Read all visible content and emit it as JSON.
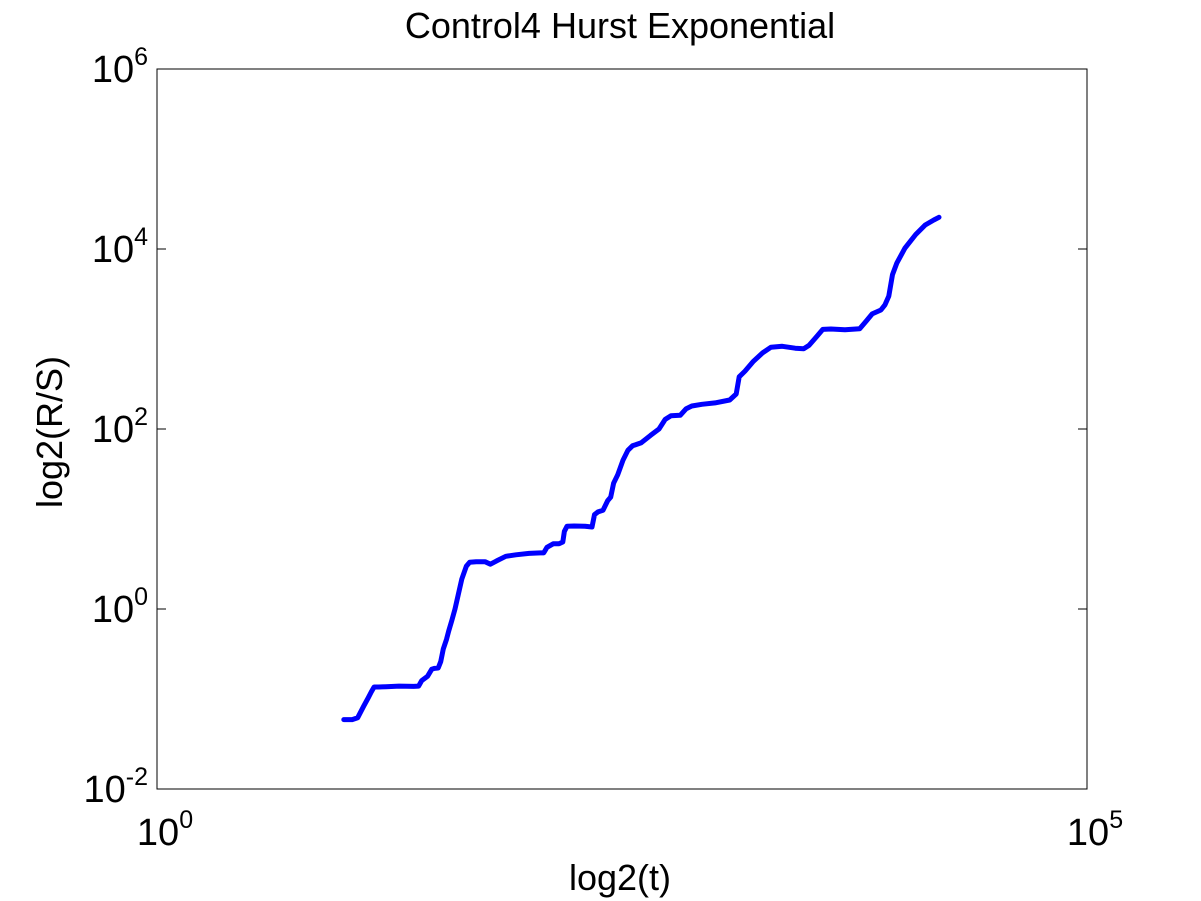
{
  "chart_data": {
    "type": "line",
    "title": "Control4 Hurst Exponential",
    "xlabel": "log2(t)",
    "ylabel": "log2(R/S)",
    "x_scale": "log",
    "y_scale": "log",
    "xlim": [
      1,
      100000
    ],
    "ylim": [
      0.01,
      1000000
    ],
    "x_ticks": [
      {
        "value": 1,
        "base": "10",
        "exp": "0"
      },
      {
        "value": 100000,
        "base": "10",
        "exp": "5"
      }
    ],
    "y_ticks": [
      {
        "value": 0.01,
        "base": "10",
        "exp": "-2"
      },
      {
        "value": 1,
        "base": "10",
        "exp": "0"
      },
      {
        "value": 100,
        "base": "10",
        "exp": "2"
      },
      {
        "value": 10000,
        "base": "10",
        "exp": "4"
      },
      {
        "value": 1000000,
        "base": "10",
        "exp": "6"
      }
    ],
    "grid": false,
    "legend": "none",
    "series": [
      {
        "color": "#0000ff",
        "points": [
          [
            10.1,
            0.059
          ],
          [
            11.2,
            0.059
          ],
          [
            12.0,
            0.062
          ],
          [
            12.9,
            0.083
          ],
          [
            13.7,
            0.104
          ],
          [
            14.2,
            0.12
          ],
          [
            14.7,
            0.136
          ],
          [
            15.5,
            0.136
          ],
          [
            17.0,
            0.137
          ],
          [
            20.0,
            0.139
          ],
          [
            24.0,
            0.138
          ],
          [
            25.5,
            0.139
          ],
          [
            26.5,
            0.16
          ],
          [
            28.5,
            0.179
          ],
          [
            30.0,
            0.214
          ],
          [
            31.0,
            0.219
          ],
          [
            32.5,
            0.221
          ],
          [
            33.5,
            0.26
          ],
          [
            34.6,
            0.36
          ],
          [
            36.0,
            0.46
          ],
          [
            37.0,
            0.57
          ],
          [
            38.5,
            0.75
          ],
          [
            40.0,
            1.0
          ],
          [
            41.5,
            1.4
          ],
          [
            43.5,
            2.15
          ],
          [
            46.0,
            2.98
          ],
          [
            48.0,
            3.3
          ],
          [
            52.0,
            3.35
          ],
          [
            58.0,
            3.35
          ],
          [
            62.0,
            3.15
          ],
          [
            67.0,
            3.42
          ],
          [
            75.0,
            3.85
          ],
          [
            85.0,
            4.0
          ],
          [
            100.0,
            4.15
          ],
          [
            115.0,
            4.2
          ],
          [
            120.0,
            4.2
          ],
          [
            125.0,
            4.85
          ],
          [
            135.0,
            5.3
          ],
          [
            145.0,
            5.3
          ],
          [
            152.0,
            5.55
          ],
          [
            155.0,
            7.3
          ],
          [
            160.0,
            8.3
          ],
          [
            175.0,
            8.35
          ],
          [
            200.0,
            8.3
          ],
          [
            218.0,
            8.15
          ],
          [
            225.0,
            11.2
          ],
          [
            235.0,
            12.0
          ],
          [
            250.0,
            12.5
          ],
          [
            265.0,
            16.0
          ],
          [
            275.0,
            17.5
          ],
          [
            285.0,
            25.0
          ],
          [
            300.0,
            31.0
          ],
          [
            320.0,
            45.0
          ],
          [
            340.0,
            58.0
          ],
          [
            360.0,
            65.0
          ],
          [
            400.0,
            70.0
          ],
          [
            450.0,
            85.0
          ],
          [
            500.0,
            100.0
          ],
          [
            540.0,
            128.0
          ],
          [
            580.0,
            140.0
          ],
          [
            650.0,
            142.0
          ],
          [
            700.0,
            168.0
          ],
          [
            750.0,
            180.0
          ],
          [
            850.0,
            188.0
          ],
          [
            1000.0,
            195.0
          ],
          [
            1200.0,
            210.0
          ],
          [
            1300.0,
            245.0
          ],
          [
            1350.0,
            380.0
          ],
          [
            1450.0,
            440.0
          ],
          [
            1600.0,
            560.0
          ],
          [
            1800.0,
            700.0
          ],
          [
            2000.0,
            810.0
          ],
          [
            2300.0,
            830.0
          ],
          [
            2700.0,
            790.0
          ],
          [
            3000.0,
            780.0
          ],
          [
            3200.0,
            850.0
          ],
          [
            3500.0,
            1050.0
          ],
          [
            3800.0,
            1280.0
          ],
          [
            4200.0,
            1290.0
          ],
          [
            5000.0,
            1270.0
          ],
          [
            6000.0,
            1300.0
          ],
          [
            6500.0,
            1580.0
          ],
          [
            7000.0,
            1900.0
          ],
          [
            7800.0,
            2100.0
          ],
          [
            8200.0,
            2400.0
          ],
          [
            8600.0,
            3000.0
          ],
          [
            9000.0,
            5200.0
          ],
          [
            9500.0,
            7000.0
          ],
          [
            10500.0,
            10200.0
          ],
          [
            12000.0,
            14500.0
          ],
          [
            13500.0,
            18500.0
          ],
          [
            15000.0,
            21000.0
          ],
          [
            16000.0,
            22500.0
          ]
        ]
      }
    ]
  }
}
